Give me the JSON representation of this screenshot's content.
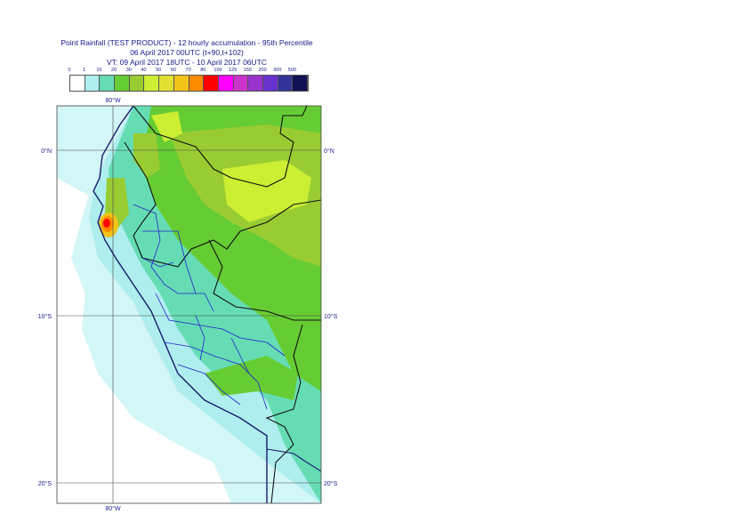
{
  "title_lines": [
    "Point Rainfall (TEST PRODUCT) - 12 hourly accumulation - 95th Percentile",
    "06 April 2017 00UTC (t+90,t+102)",
    "VT: 09 April 2017 18UTC - 10 April 2017 06UTC"
  ],
  "legend": {
    "labels": [
      "0",
      "1",
      "10",
      "20",
      "30",
      "40",
      "50",
      "60",
      "70",
      "80",
      "100",
      "125",
      "150",
      "200",
      "300",
      "500"
    ],
    "colors": [
      "#ffffff",
      "#aeeeee",
      "#66dcb4",
      "#66cc33",
      "#99cc33",
      "#ccee33",
      "#e0e033",
      "#f0c419",
      "#ff8c00",
      "#ff0000",
      "#ff00ff",
      "#cc33cc",
      "#9933cc",
      "#6633cc",
      "#333399",
      "#111155"
    ]
  },
  "map": {
    "lon_labels_top": [
      "80°W"
    ],
    "lon_labels_bottom": [
      "80°W"
    ],
    "lat_labels_left": [
      "0°N",
      "10°S",
      "20°S"
    ],
    "lat_labels_right": [
      "0°N",
      "10°S",
      "20°S"
    ],
    "colors": {
      "ocean": "#ffffff",
      "light": "#aeeeee",
      "teal": "#66dcb4",
      "green": "#66cc33",
      "lime": "#99cc33",
      "yellow": "#ccee33",
      "red": "#ff0000",
      "orange": "#ff8c00",
      "coast": "#1a1a6e",
      "admin": "#2222cc"
    }
  }
}
